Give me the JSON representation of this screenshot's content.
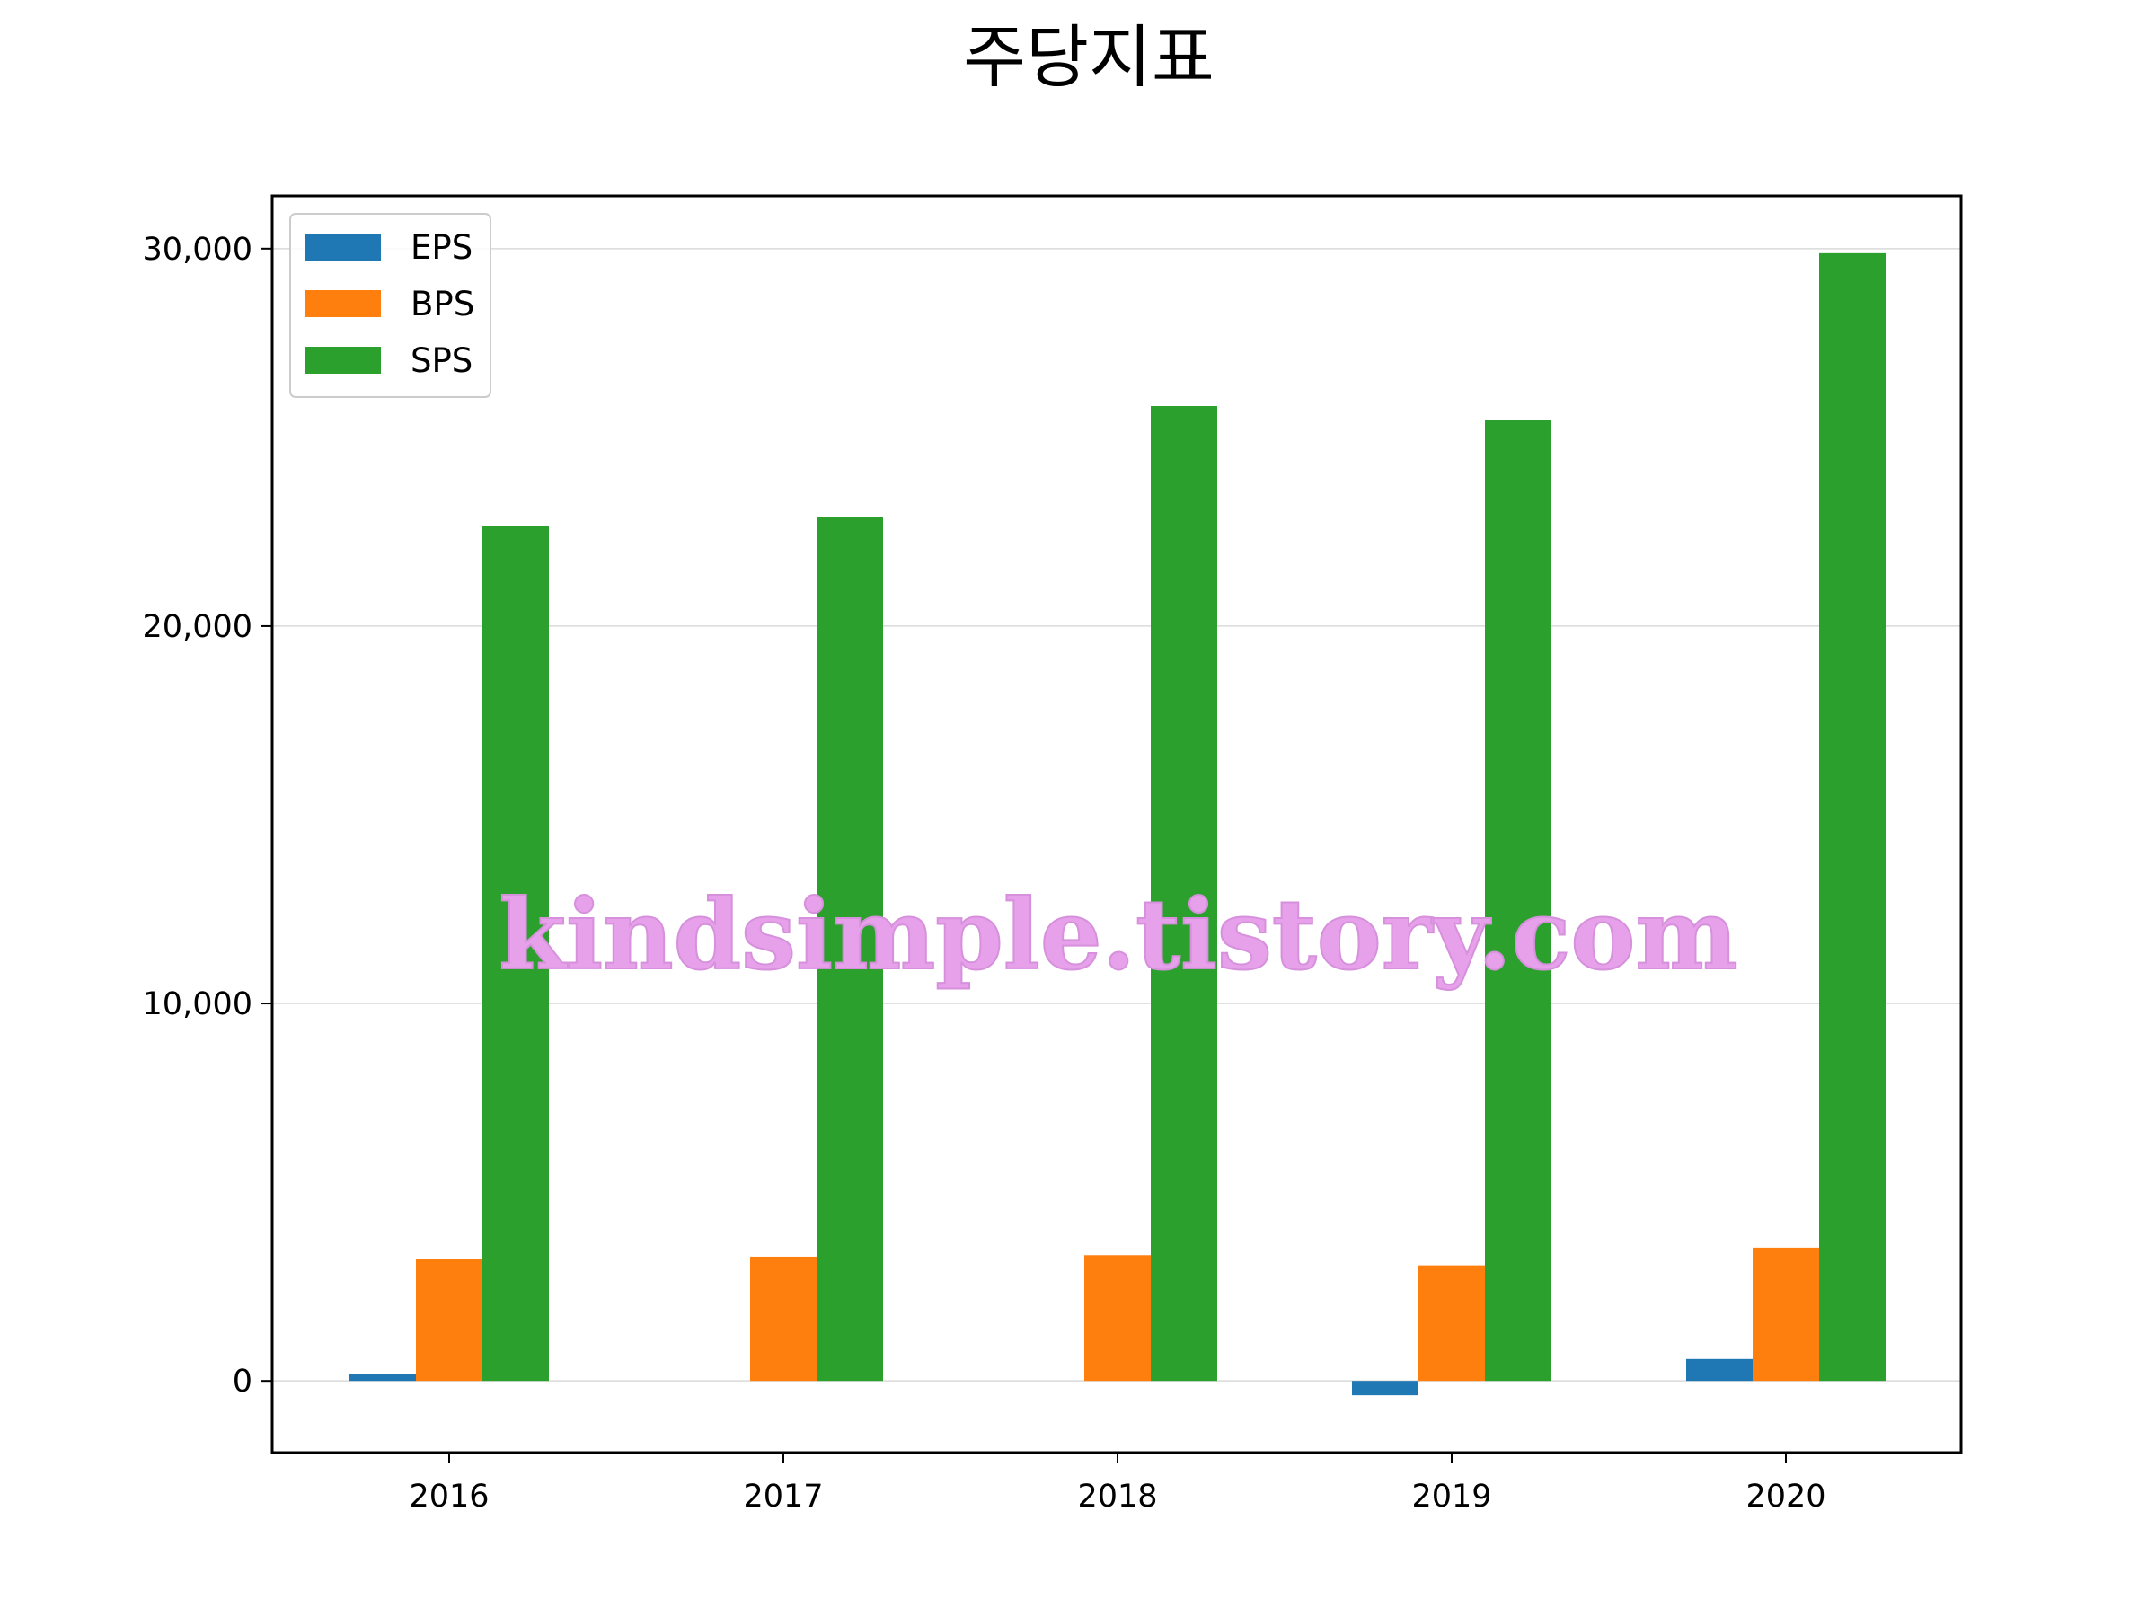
{
  "title": "주당지표",
  "watermark": "kindsimple.tistory.com",
  "colors": {
    "EPS": "#1f77b4",
    "BPS": "#ff7f0e",
    "SPS": "#2ca02c",
    "grid": "#d9d9d9",
    "watermark": "#e6a1ea"
  },
  "chart_data": {
    "type": "bar",
    "title": "주당지표",
    "categories": [
      "2016",
      "2017",
      "2018",
      "2019",
      "2020"
    ],
    "series": [
      {
        "name": "EPS",
        "values": [
          180,
          0,
          0,
          -380,
          580
        ]
      },
      {
        "name": "BPS",
        "values": [
          3230,
          3290,
          3330,
          3060,
          3530
        ]
      },
      {
        "name": "SPS",
        "values": [
          22650,
          22900,
          25830,
          25450,
          29880
        ]
      }
    ],
    "yticks": [
      0,
      10000,
      20000,
      30000
    ],
    "ytick_labels": [
      "0",
      "10,000",
      "20,000",
      "30,000"
    ],
    "ylim": [
      -1900,
      31400
    ],
    "grid": "horizontal",
    "legend_position": "top-left",
    "xlabel": "",
    "ylabel": ""
  }
}
